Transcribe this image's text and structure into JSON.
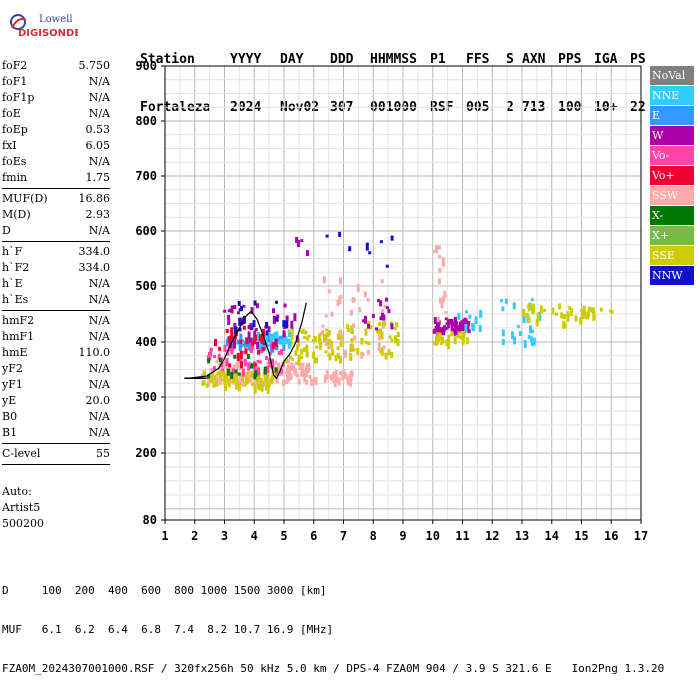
{
  "logo": {
    "line1": "Lowell",
    "line2": "DIGISONDE"
  },
  "header": {
    "labels": [
      "Station",
      "YYYY",
      "DAY",
      "DDD",
      "HHMMSS",
      "P1",
      "FFS",
      "S",
      "AXN",
      "PPS",
      "IGA",
      "PS"
    ],
    "values": [
      "Fortaleza",
      "2024",
      "Nov02",
      "307",
      "001000",
      "RSF",
      "005",
      "2",
      "713",
      "100",
      "10+",
      "22"
    ]
  },
  "params": [
    {
      "label": "foF2",
      "value": "5.750"
    },
    {
      "label": "foF1",
      "value": "N/A"
    },
    {
      "label": "foF1p",
      "value": "N/A"
    },
    {
      "label": "foE",
      "value": "N/A"
    },
    {
      "label": "foEp",
      "value": "0.53"
    },
    {
      "label": "fxI",
      "value": "6.05"
    },
    {
      "label": "foEs",
      "value": "N/A"
    },
    {
      "label": "fmin",
      "value": "1.75"
    },
    {
      "sep": true
    },
    {
      "label": "MUF(D)",
      "value": "16.86"
    },
    {
      "label": "M(D)",
      "value": "2.93"
    },
    {
      "label": "D",
      "value": "N/A"
    },
    {
      "sep": true
    },
    {
      "label": "h`F",
      "value": "334.0"
    },
    {
      "label": "h`F2",
      "value": "334.0"
    },
    {
      "label": "h`E",
      "value": "N/A"
    },
    {
      "label": "h`Es",
      "value": "N/A"
    },
    {
      "sep": true
    },
    {
      "label": "hmF2",
      "value": "N/A"
    },
    {
      "label": "hmF1",
      "value": "N/A"
    },
    {
      "label": "hmE",
      "value": "110.0"
    },
    {
      "label": "yF2",
      "value": "N/A"
    },
    {
      "label": "yF1",
      "value": "N/A"
    },
    {
      "label": "yE",
      "value": "20.0"
    },
    {
      "label": "B0",
      "value": "N/A"
    },
    {
      "label": "B1",
      "value": "N/A"
    },
    {
      "sep": true
    },
    {
      "label": "C-level",
      "value": "55"
    },
    {
      "sep": true
    }
  ],
  "auto": {
    "line1": "Auto:",
    "line2": "Artist5",
    "line3": "500200"
  },
  "legend": [
    {
      "label": "NoVal",
      "color": "#808080"
    },
    {
      "label": "NNE",
      "color": "#33ccff"
    },
    {
      "label": "E",
      "color": "#3399ff"
    },
    {
      "label": "W",
      "color": "#aa00aa"
    },
    {
      "label": "Vo-",
      "color": "#ff44aa"
    },
    {
      "label": "Vo+",
      "color": "#ee0033"
    },
    {
      "label": "SSW",
      "color": "#ffaaaa"
    },
    {
      "label": "X-",
      "color": "#007700"
    },
    {
      "label": "X+",
      "color": "#77bb44"
    },
    {
      "label": "SSE",
      "color": "#cccc00"
    },
    {
      "label": "NNW",
      "color": "#1111cc"
    }
  ],
  "footer": {
    "line1": "D     100  200  400  600  800 1000 1500 3000 [km]",
    "line2": "MUF   6.1  6.2  6.4  6.8  7.4  8.2 10.7 16.9 [MHz]",
    "line3": "FZA0M_2024307001000.RSF / 320fx256h 50 kHz 5.0 km / DPS-4 FZA0M 904 / 3.9 S 321.6 E   Ion2Png 1.3.20"
  },
  "chart_data": {
    "type": "scatter",
    "x_ticks": [
      1,
      2,
      3,
      4,
      5,
      6,
      7,
      8,
      9,
      10,
      11,
      12,
      13,
      14,
      15,
      16,
      17
    ],
    "y_ticks": [
      80,
      200,
      300,
      400,
      500,
      600,
      700,
      800,
      900
    ],
    "xlim": [
      1,
      17
    ],
    "ylim": [
      80,
      900
    ],
    "grid": true,
    "trace": [
      [
        1.75,
        334
      ],
      [
        2.4,
        338
      ],
      [
        2.8,
        352
      ],
      [
        3.0,
        370
      ],
      [
        3.2,
        395
      ],
      [
        3.5,
        425
      ],
      [
        3.7,
        445
      ],
      [
        3.9,
        455
      ],
      [
        4.1,
        440
      ],
      [
        4.3,
        412
      ],
      [
        4.5,
        380
      ],
      [
        4.65,
        340
      ],
      [
        4.75,
        334
      ],
      [
        4.85,
        345
      ],
      [
        5.0,
        365
      ],
      [
        5.2,
        378
      ],
      [
        5.4,
        400
      ],
      [
        5.6,
        435
      ],
      [
        5.75,
        470
      ]
    ],
    "clusters": [
      {
        "color": "#ffaaaa",
        "x": [
          2.4,
          5.8
        ],
        "y": [
          330,
          370
        ],
        "n": 140
      },
      {
        "color": "#cccc00",
        "x": [
          2.2,
          4.6
        ],
        "y": [
          320,
          350
        ],
        "n": 70
      },
      {
        "color": "#cccc00",
        "x": [
          5.0,
          7.0
        ],
        "y": [
          370,
          430
        ],
        "n": 60
      },
      {
        "color": "#3399ff",
        "x": [
          3.0,
          5.0
        ],
        "y": [
          390,
          415
        ],
        "n": 60
      },
      {
        "color": "#33ccff",
        "x": [
          4.0,
          5.2
        ],
        "y": [
          395,
          420
        ],
        "n": 40
      },
      {
        "color": "#ff44aa",
        "x": [
          2.4,
          5.0
        ],
        "y": [
          350,
          400
        ],
        "n": 50
      },
      {
        "color": "#aa00aa",
        "x": [
          2.8,
          5.4
        ],
        "y": [
          400,
          470
        ],
        "n": 40
      },
      {
        "color": "#ee0033",
        "x": [
          2.6,
          4.6
        ],
        "y": [
          360,
          430
        ],
        "n": 30
      },
      {
        "color": "#007700",
        "x": [
          2.4,
          4.8
        ],
        "y": [
          340,
          380
        ],
        "n": 15
      },
      {
        "color": "#1111cc",
        "x": [
          3.2,
          5.2
        ],
        "y": [
          420,
          480
        ],
        "n": 18
      },
      {
        "color": "#cccc00",
        "x": [
          7.0,
          8.8
        ],
        "y": [
          380,
          440
        ],
        "n": 40
      },
      {
        "color": "#ffaaaa",
        "x": [
          6.2,
          8.4
        ],
        "y": [
          380,
          520
        ],
        "n": 35
      },
      {
        "color": "#ffaaaa",
        "x": [
          5.8,
          7.4
        ],
        "y": [
          330,
          350
        ],
        "n": 30
      },
      {
        "color": "#aa00aa",
        "x": [
          7.5,
          8.6
        ],
        "y": [
          420,
          480
        ],
        "n": 14
      },
      {
        "color": "#aa00aa",
        "x": [
          10.0,
          11.3
        ],
        "y": [
          420,
          445
        ],
        "n": 60
      },
      {
        "color": "#cccc00",
        "x": [
          10.0,
          11.3
        ],
        "y": [
          400,
          420
        ],
        "n": 25
      },
      {
        "color": "#33ccff",
        "x": [
          10.8,
          11.6
        ],
        "y": [
          430,
          460
        ],
        "n": 10
      },
      {
        "color": "#ffaaaa",
        "x": [
          10.0,
          10.4
        ],
        "y": [
          440,
          580
        ],
        "n": 16
      },
      {
        "color": "#33ccff",
        "x": [
          12.2,
          13.6
        ],
        "y": [
          400,
          480
        ],
        "n": 25
      },
      {
        "color": "#cccc00",
        "x": [
          13.0,
          14.4
        ],
        "y": [
          430,
          470
        ],
        "n": 20
      },
      {
        "color": "#cccc00",
        "x": [
          14.2,
          15.4
        ],
        "y": [
          445,
          465
        ],
        "n": 20
      },
      {
        "color": "#1111cc",
        "x": [
          6.0,
          9.0
        ],
        "y": [
          530,
          600
        ],
        "n": 8
      },
      {
        "color": "#aa00aa",
        "x": [
          5.2,
          5.8
        ],
        "y": [
          560,
          590
        ],
        "n": 4
      },
      {
        "color": "#cccc00",
        "x": [
          15.5,
          16.8
        ],
        "y": [
          455,
          465
        ],
        "n": 3
      }
    ]
  }
}
